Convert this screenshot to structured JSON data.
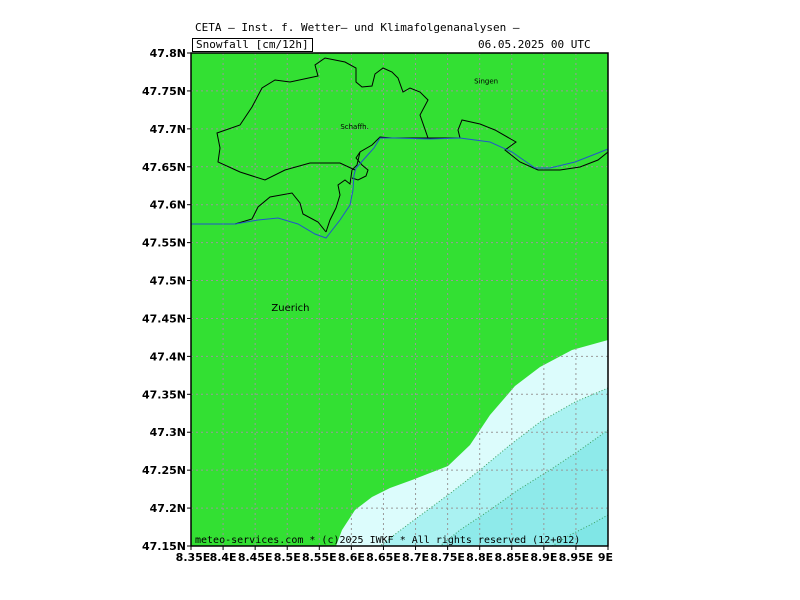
{
  "header": {
    "org": "CETA – Inst. f. Wetter– und Klimafolgenanalysen –",
    "variable": "Snowfall [cm/12h]",
    "datetime": "06.05.2025 00 UTC"
  },
  "footer": {
    "credit": "meteo-services.com * (c)2025 IWKF * All rights reserved (12+012)"
  },
  "map": {
    "lon_range": [
      8.35,
      9.0
    ],
    "lat_range": [
      47.15,
      47.8
    ],
    "y_ticks": [
      "47.15N",
      "47.2N",
      "47.25N",
      "47.3N",
      "47.35N",
      "47.4N",
      "47.45N",
      "47.5N",
      "47.55N",
      "47.6N",
      "47.65N",
      "47.7N",
      "47.75N",
      "47.8N"
    ],
    "x_ticks": [
      "8.35E",
      "8.4E",
      "8.45E",
      "8.5E",
      "8.55E",
      "8.6E",
      "8.65E",
      "8.7E",
      "8.75E",
      "8.8E",
      "8.85E",
      "8.9E",
      "8.95E",
      "9E"
    ],
    "places": [
      {
        "name": "Zuerich",
        "lon": 8.505,
        "lat": 47.46
      },
      {
        "name": "Schaffh.",
        "lon": 8.605,
        "lat": 47.7
      },
      {
        "name": "Singen",
        "lon": 8.81,
        "lat": 47.76
      }
    ],
    "colors": {
      "snow_none": "#33e033",
      "snow_trace": "#dcfcfc",
      "snow_light": "#aaf2f2",
      "snow_moderate": "#8eeaea",
      "grid": "#999999",
      "border": "#000000",
      "river": "#2255cc"
    },
    "grid": true
  }
}
